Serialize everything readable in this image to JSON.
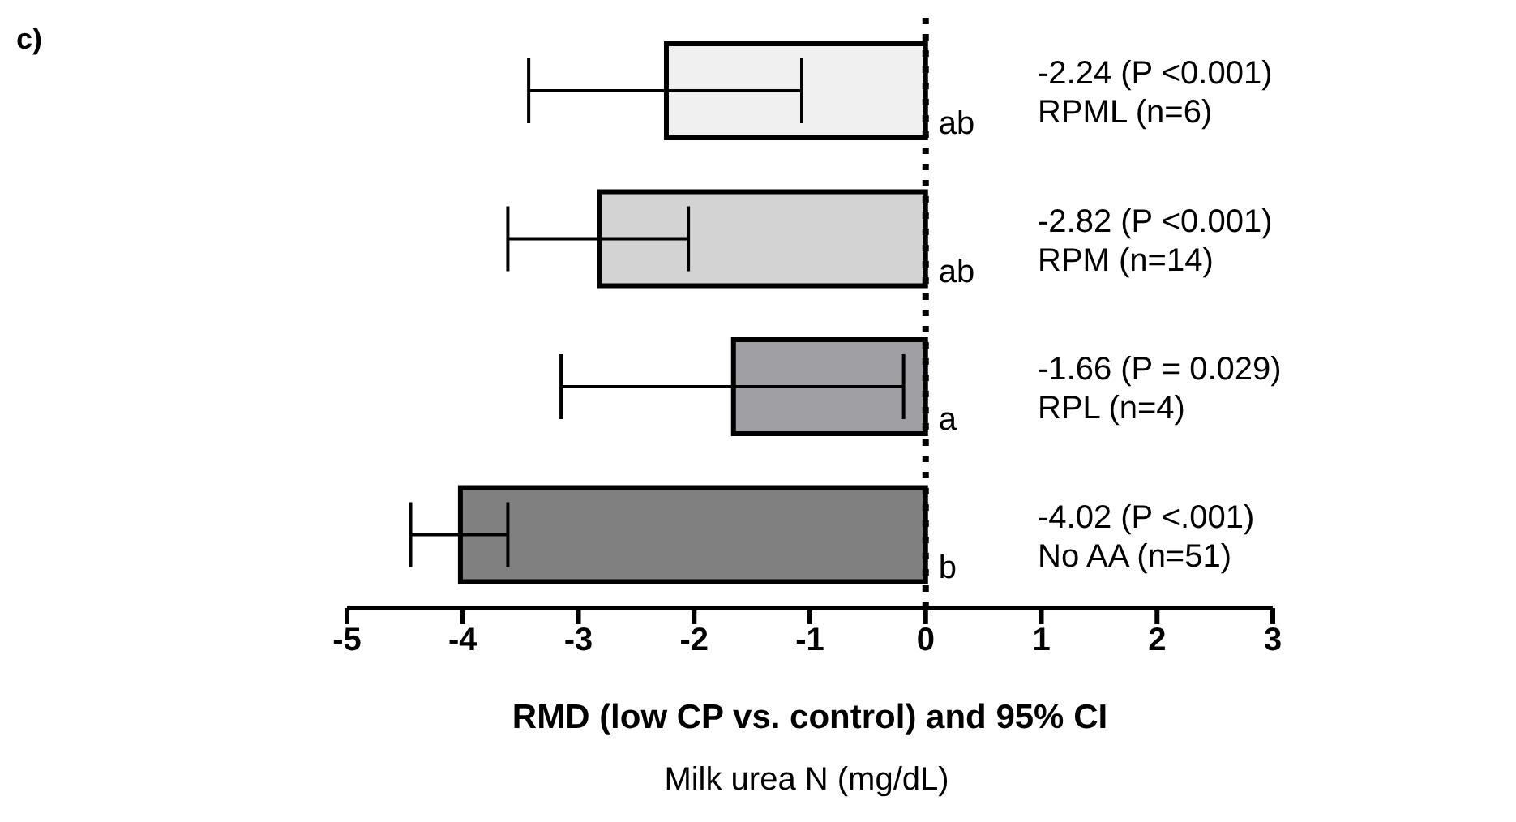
{
  "chart_data": {
    "type": "bar",
    "orientation": "horizontal",
    "title": "c)",
    "xlabel": "RMD (low CP vs. control) and 95% CI",
    "categories": [
      "RPML (n=6)",
      "RPM (n=14)",
      "RPL (n=4)",
      "No AA (n=51)"
    ],
    "values": [
      -2.24,
      -2.82,
      -1.66,
      -4.02
    ],
    "colors": [
      "#f0f0f0",
      "#d3d3d3",
      "#a0a0a4",
      "#808080"
    ],
    "errors": [
      [
        -3.43,
        -1.07
      ],
      [
        -3.61,
        -2.05
      ],
      [
        -3.15,
        -0.19
      ],
      [
        -4.45,
        -3.61
      ]
    ],
    "xlim": [
      -5,
      3
    ],
    "xticks": [
      -5,
      -4,
      -3,
      -2,
      -1,
      0,
      1,
      2,
      3
    ],
    "ref_lines": [
      {
        "axis": "x",
        "value": 0,
        "line_style": "dotted",
        "color": "#000000"
      }
    ],
    "annotations": [
      "ab",
      "ab",
      "a",
      "b",
      "-2.24 (P <0.001)",
      "-2.82 (P <0.001)",
      "-1.66 (P = 0.029)",
      "-4.02 (P <.001)",
      "Milk urea N (mg/dL)"
    ],
    "grid": false,
    "legend": false
  }
}
